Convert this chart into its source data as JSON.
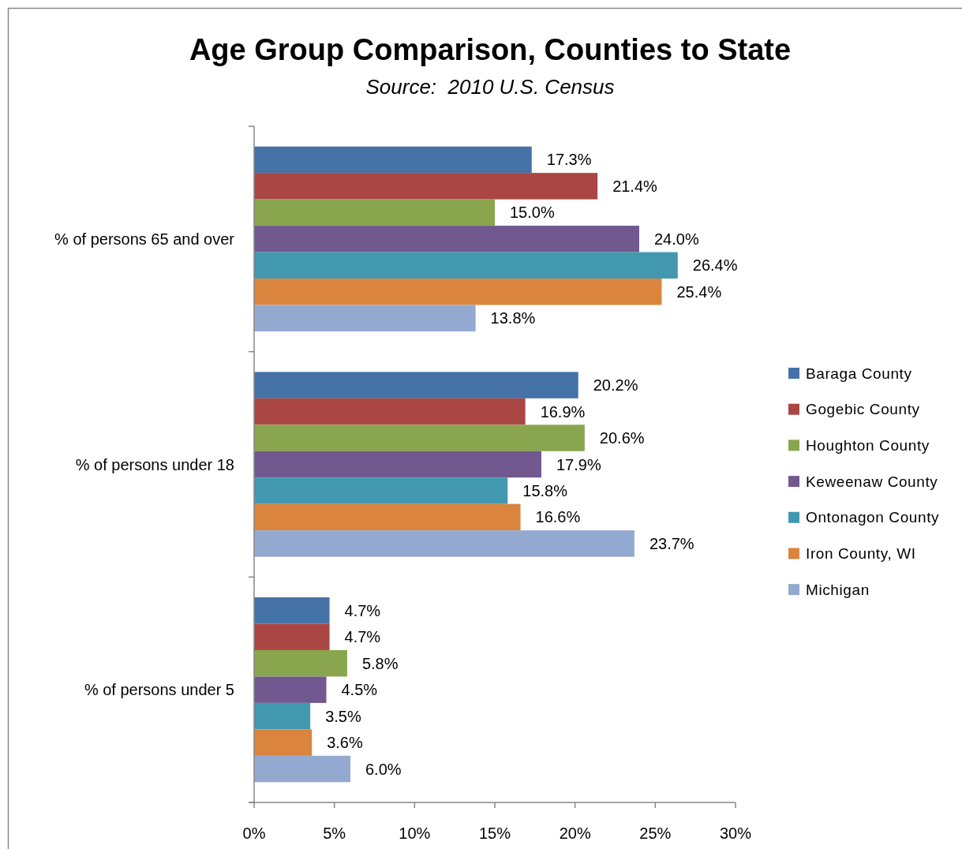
{
  "chart_data": {
    "type": "bar",
    "orientation": "horizontal",
    "title": "Age Group Comparison, Counties to State",
    "subtitle": "Source:  2010 U.S. Census",
    "categories": [
      "% of persons 65 and over",
      "% of persons under 18",
      "% of persons under 5"
    ],
    "series": [
      {
        "name": "Baraga County",
        "color": "#4572a7",
        "values": [
          17.3,
          20.2,
          4.7
        ],
        "value_labels": [
          "17.3%",
          "20.2%",
          "4.7%"
        ]
      },
      {
        "name": "Gogebic County",
        "color": "#aa4643",
        "values": [
          21.4,
          16.9,
          4.7
        ],
        "value_labels": [
          "21.4%",
          "16.9%",
          "4.7%"
        ]
      },
      {
        "name": "Houghton County",
        "color": "#89a54e",
        "values": [
          15.0,
          20.6,
          5.8
        ],
        "value_labels": [
          "15.0%",
          "20.6%",
          "5.8%"
        ]
      },
      {
        "name": "Keweenaw County",
        "color": "#71588f",
        "values": [
          24.0,
          17.9,
          4.5
        ],
        "value_labels": [
          "24.0%",
          "17.9%",
          "4.5%"
        ]
      },
      {
        "name": "Ontonagon County",
        "color": "#4198af",
        "values": [
          26.4,
          15.8,
          3.5
        ],
        "value_labels": [
          "26.4%",
          "15.8%",
          "3.5%"
        ]
      },
      {
        "name": "Iron County, WI",
        "color": "#db843d",
        "values": [
          25.4,
          16.6,
          3.6
        ],
        "value_labels": [
          "25.4%",
          "16.6%",
          "3.6%"
        ]
      },
      {
        "name": "Michigan",
        "color": "#93a9cf",
        "values": [
          13.8,
          23.7,
          6.0
        ],
        "value_labels": [
          "13.8%",
          "23.7%",
          "6.0%"
        ]
      }
    ],
    "xlim": [
      0,
      30
    ],
    "xticks": [
      {
        "value": 0,
        "label": "0%"
      },
      {
        "value": 5,
        "label": "5%"
      },
      {
        "value": 10,
        "label": "10%"
      },
      {
        "value": 15,
        "label": "15%"
      },
      {
        "value": 20,
        "label": "20%"
      },
      {
        "value": 25,
        "label": "25%"
      },
      {
        "value": 30,
        "label": "30%"
      }
    ],
    "legend": "right"
  }
}
